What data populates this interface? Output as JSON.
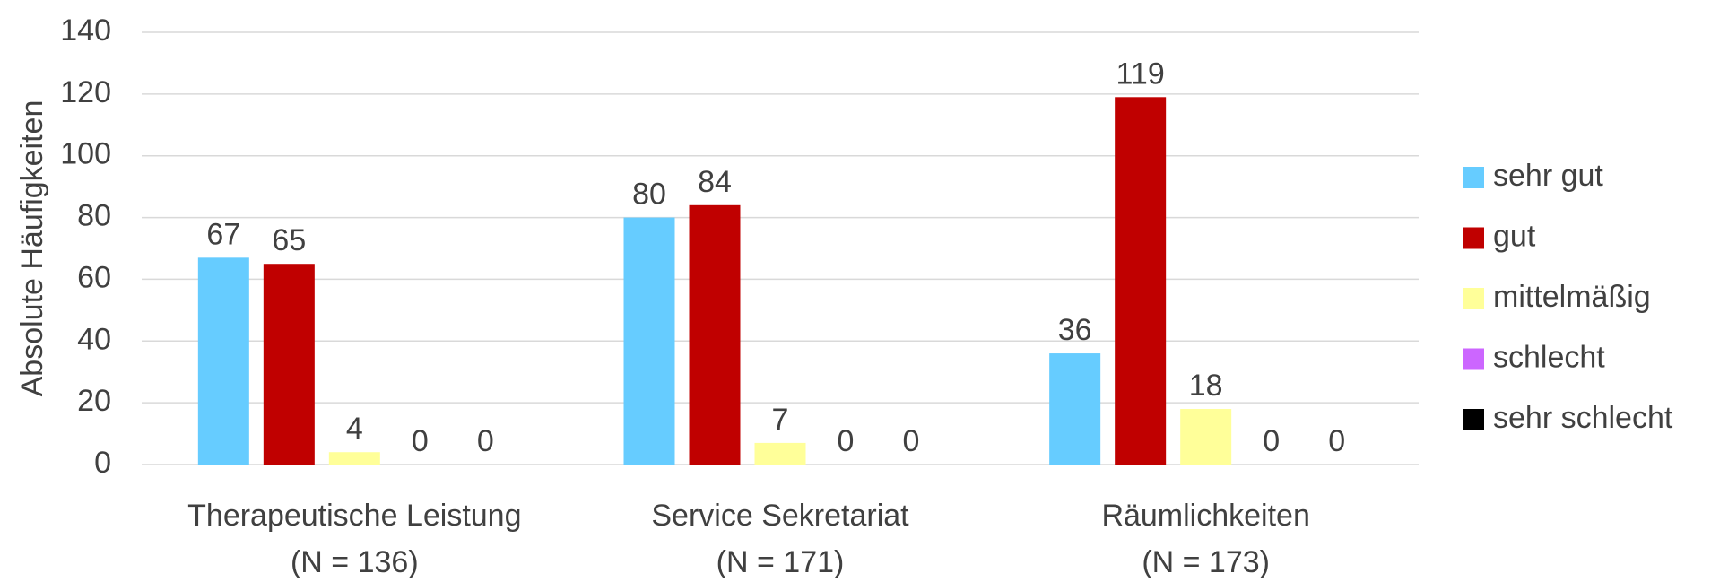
{
  "chart_data": {
    "type": "bar",
    "y_label": "Absolute Häufigkeiten",
    "categories": [
      [
        "Therapeutische Leistung",
        "(N = 136)"
      ],
      [
        "Service Sekretariat",
        "(N = 171)"
      ],
      [
        "Räumlichkeiten",
        "(N = 173)"
      ]
    ],
    "series": [
      {
        "name": "sehr gut",
        "color": "#66ccff",
        "values": [
          67,
          80,
          36
        ]
      },
      {
        "name": "gut",
        "color": "#c00000",
        "values": [
          65,
          84,
          119
        ]
      },
      {
        "name": "mittelmäßig",
        "color": "#ffff99",
        "values": [
          4,
          7,
          18
        ]
      },
      {
        "name": "schlecht",
        "color": "#cc66ff",
        "values": [
          0,
          0,
          0
        ]
      },
      {
        "name": "sehr schlecht",
        "color": "#000000",
        "values": [
          0,
          0,
          0
        ]
      }
    ],
    "ylim": [
      0,
      140
    ],
    "yticks": [
      0,
      20,
      40,
      60,
      80,
      100,
      120,
      140
    ],
    "grid": true,
    "legend": "right"
  }
}
